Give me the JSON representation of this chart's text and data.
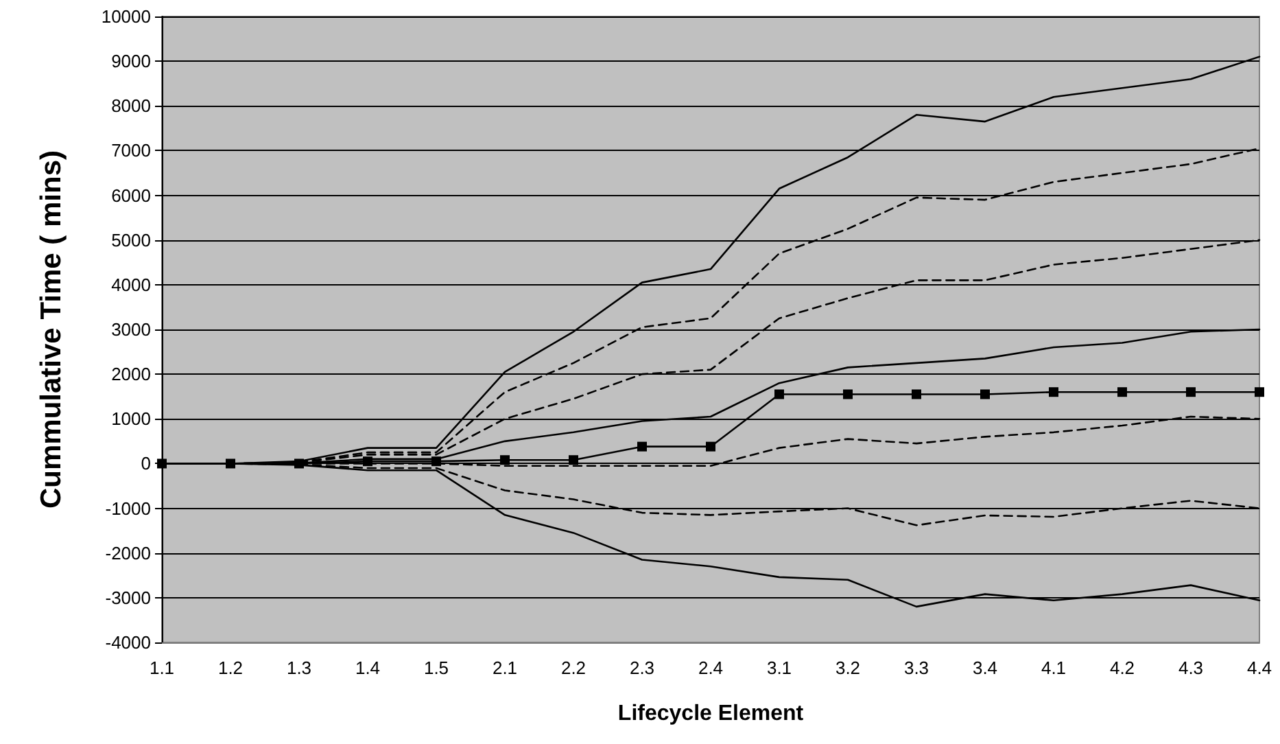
{
  "chart_data": {
    "type": "line",
    "xlabel": "Lifecycle Element",
    "ylabel": "Cummulative Time ( mins)",
    "categories": [
      "1.1",
      "1.2",
      "1.3",
      "1.4",
      "1.5",
      "2.1",
      "2.2",
      "2.3",
      "2.4",
      "3.1",
      "3.2",
      "3.3",
      "3.4",
      "4.1",
      "4.2",
      "4.3",
      "4.4"
    ],
    "series": [
      {
        "color": "#000000",
        "line_style": "solid",
        "marker": "none",
        "values": [
          0,
          0,
          50,
          350,
          350,
          2050,
          2950,
          4050,
          4350,
          6150,
          6850,
          7800,
          7650,
          8200,
          8400,
          8600,
          9100
        ]
      },
      {
        "color": "#000000",
        "line_style": "dashed",
        "marker": "none",
        "values": [
          0,
          0,
          30,
          250,
          250,
          1600,
          2250,
          3050,
          3250,
          4700,
          5250,
          5950,
          5900,
          6300,
          6500,
          6700,
          7050
        ]
      },
      {
        "color": "#000000",
        "line_style": "dashed",
        "marker": "none",
        "values": [
          0,
          0,
          20,
          200,
          200,
          1000,
          1450,
          2000,
          2100,
          3250,
          3700,
          4100,
          4100,
          4450,
          4600,
          4800,
          5000
        ]
      },
      {
        "color": "#000000",
        "line_style": "solid",
        "marker": "none",
        "values": [
          0,
          0,
          10,
          100,
          100,
          500,
          700,
          950,
          1050,
          1800,
          2150,
          2250,
          2350,
          2600,
          2700,
          2950,
          3000
        ]
      },
      {
        "color": "#000000",
        "line_style": "solid",
        "marker": "square",
        "values": [
          0,
          0,
          0,
          50,
          50,
          80,
          80,
          380,
          380,
          1550,
          1550,
          1550,
          1550,
          1600,
          1600,
          1600,
          1600
        ]
      },
      {
        "color": "#000000",
        "line_style": "dashed",
        "marker": "none",
        "values": [
          0,
          0,
          0,
          0,
          0,
          -50,
          -50,
          -50,
          -50,
          350,
          550,
          450,
          600,
          700,
          850,
          1050,
          1000
        ]
      },
      {
        "color": "#000000",
        "line_style": "dashed",
        "marker": "none",
        "values": [
          0,
          0,
          -20,
          -100,
          -100,
          -600,
          -800,
          -1100,
          -1150,
          -1070,
          -1000,
          -1380,
          -1160,
          -1190,
          -1000,
          -830,
          -1000
        ]
      },
      {
        "color": "#000000",
        "line_style": "solid",
        "marker": "none",
        "values": [
          0,
          0,
          -30,
          -150,
          -150,
          -1150,
          -1550,
          -2150,
          -2300,
          -2540,
          -2600,
          -3200,
          -2920,
          -3060,
          -2920,
          -2720,
          -3060
        ]
      }
    ],
    "ylim": [
      -4000,
      10000
    ],
    "yticks": [
      -4000,
      -3000,
      -2000,
      -1000,
      0,
      1000,
      2000,
      3000,
      4000,
      5000,
      6000,
      7000,
      8000,
      9000,
      10000
    ],
    "grid": "y"
  }
}
